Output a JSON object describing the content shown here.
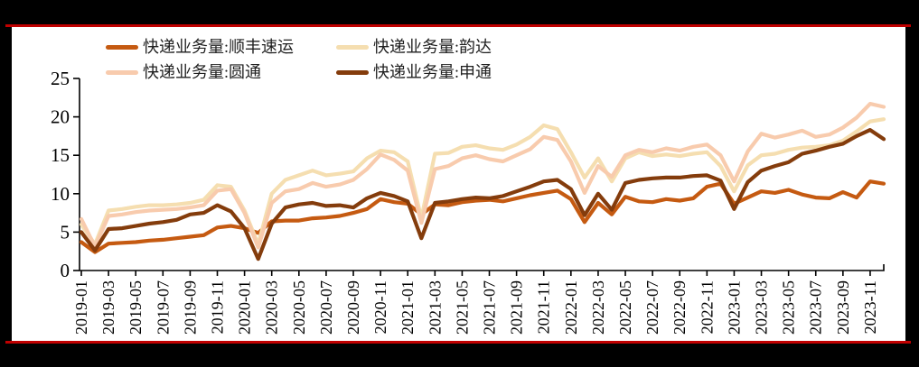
{
  "colors": {
    "background": "#000000",
    "panel": "#FFFFFF",
    "rule": "#C00000",
    "axis": "#000000",
    "text": "#1F1F1F"
  },
  "chart_data": {
    "type": "line",
    "title": "",
    "xlabel": "",
    "ylabel": "",
    "ylim": [
      0,
      25
    ],
    "yticks": [
      0,
      5,
      10,
      15,
      20,
      25
    ],
    "grid": false,
    "legend_position": "top",
    "x": [
      "2019-01",
      "2019-02",
      "2019-03",
      "2019-04",
      "2019-05",
      "2019-06",
      "2019-07",
      "2019-08",
      "2019-09",
      "2019-10",
      "2019-11",
      "2019-12",
      "2020-01",
      "2020-02",
      "2020-03",
      "2020-04",
      "2020-05",
      "2020-06",
      "2020-07",
      "2020-08",
      "2020-09",
      "2020-10",
      "2020-11",
      "2020-12",
      "2021-01",
      "2021-02",
      "2021-03",
      "2021-04",
      "2021-05",
      "2021-06",
      "2021-07",
      "2021-08",
      "2021-09",
      "2021-10",
      "2021-11",
      "2021-12",
      "2022-01",
      "2022-02",
      "2022-03",
      "2022-04",
      "2022-05",
      "2022-06",
      "2022-07",
      "2022-08",
      "2022-09",
      "2022-10",
      "2022-11",
      "2022-12",
      "2023-01",
      "2023-02",
      "2023-03",
      "2023-04",
      "2023-05",
      "2023-06",
      "2023-07",
      "2023-08",
      "2023-09",
      "2023-10",
      "2023-11",
      "2023-12"
    ],
    "x_tick_labels": [
      "2019-01",
      "2019-03",
      "2019-05",
      "2019-07",
      "2019-09",
      "2019-11",
      "2020-01",
      "2020-03",
      "2020-05",
      "2020-07",
      "2020-09",
      "2020-11",
      "2021-01",
      "2021-03",
      "2021-05",
      "2021-07",
      "2021-09",
      "2021-11",
      "2022-01",
      "2022-03",
      "2022-05",
      "2022-07",
      "2022-09",
      "2022-11",
      "2023-01",
      "2023-03",
      "2023-05",
      "2023-07",
      "2023-09",
      "2023-11"
    ],
    "series": [
      {
        "name": "快递业务量:顺丰速运",
        "color": "#C55A11",
        "values": [
          3.7,
          2.4,
          3.5,
          3.6,
          3.7,
          3.9,
          4.0,
          4.2,
          4.4,
          4.6,
          5.6,
          5.8,
          5.5,
          4.9,
          6.4,
          6.5,
          6.5,
          6.8,
          6.9,
          7.1,
          7.5,
          8.0,
          9.3,
          8.9,
          8.7,
          7.3,
          8.6,
          8.5,
          8.9,
          9.1,
          9.2,
          9.0,
          9.4,
          9.8,
          10.1,
          10.4,
          9.3,
          6.3,
          8.8,
          7.3,
          9.6,
          9.0,
          8.9,
          9.3,
          9.1,
          9.4,
          10.9,
          11.3,
          8.7,
          9.5,
          10.3,
          10.1,
          10.5,
          9.9,
          9.5,
          9.4,
          10.2,
          9.5,
          11.6,
          11.3
        ]
      },
      {
        "name": "快递业务量:韵达",
        "color": "#F5DEB0",
        "values": [
          6.0,
          3.4,
          7.8,
          8.0,
          8.3,
          8.5,
          8.5,
          8.6,
          8.8,
          9.2,
          11.1,
          10.9,
          7.8,
          3.4,
          10.0,
          11.8,
          12.4,
          13.0,
          12.4,
          12.6,
          12.9,
          14.6,
          15.6,
          15.4,
          14.2,
          6.8,
          15.2,
          15.3,
          16.1,
          16.3,
          15.9,
          15.7,
          16.4,
          17.4,
          18.9,
          18.4,
          15.4,
          12.1,
          14.6,
          11.6,
          14.6,
          15.4,
          14.9,
          15.1,
          14.9,
          15.2,
          15.4,
          13.6,
          10.3,
          13.7,
          15.0,
          15.2,
          15.7,
          16.0,
          16.1,
          16.3,
          16.9,
          18.1,
          19.4,
          19.7
        ]
      },
      {
        "name": "快递业务量:圆通",
        "color": "#F8CBAD",
        "values": [
          6.7,
          3.1,
          7.1,
          7.3,
          7.6,
          7.8,
          7.9,
          8.0,
          8.2,
          8.5,
          10.4,
          10.6,
          7.5,
          3.0,
          8.8,
          10.3,
          10.6,
          11.4,
          10.9,
          11.2,
          11.8,
          13.2,
          15.1,
          14.4,
          13.0,
          6.2,
          13.2,
          13.6,
          14.6,
          15.0,
          14.5,
          14.2,
          15.0,
          15.8,
          17.4,
          17.0,
          14.2,
          10.1,
          13.6,
          12.2,
          15.0,
          15.7,
          15.4,
          15.9,
          15.6,
          16.1,
          16.4,
          15.0,
          11.6,
          15.5,
          17.8,
          17.3,
          17.7,
          18.2,
          17.4,
          17.7,
          18.6,
          19.9,
          21.7,
          21.3
        ]
      },
      {
        "name": "快递业务量:申通",
        "color": "#843C0C",
        "values": [
          5.0,
          2.6,
          5.4,
          5.5,
          5.8,
          6.1,
          6.3,
          6.6,
          7.3,
          7.5,
          8.5,
          7.7,
          5.5,
          1.5,
          6.1,
          8.2,
          8.6,
          8.8,
          8.4,
          8.5,
          8.2,
          9.4,
          10.1,
          9.7,
          9.0,
          4.2,
          8.8,
          9.0,
          9.3,
          9.5,
          9.4,
          9.7,
          10.3,
          10.9,
          11.6,
          11.8,
          10.6,
          7.2,
          10.0,
          7.9,
          11.4,
          11.8,
          12.0,
          12.1,
          12.1,
          12.3,
          12.4,
          11.7,
          8.0,
          11.5,
          13.0,
          13.6,
          14.1,
          15.2,
          15.6,
          16.1,
          16.5,
          17.5,
          18.3,
          17.1
        ]
      }
    ]
  }
}
